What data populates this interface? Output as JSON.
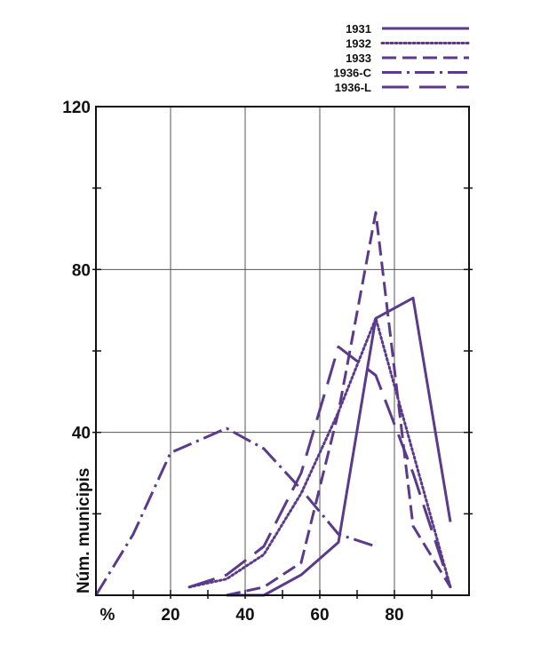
{
  "chart_data": {
    "type": "line",
    "title": "",
    "xlabel": "%",
    "ylabel": "Núm. municipis",
    "xlim": [
      0,
      100
    ],
    "ylim": [
      0,
      120
    ],
    "x_ticks": [
      20,
      40,
      60,
      80
    ],
    "y_ticks": [
      40,
      80,
      120
    ],
    "grid": true,
    "legend_position": "top-right",
    "series_color": "#5b3a8c",
    "series": [
      {
        "name": "1931",
        "style": "solid",
        "x": [
          35,
          45,
          55,
          65,
          75,
          85,
          95
        ],
        "y": [
          0,
          0,
          5,
          13,
          68,
          73,
          18
        ]
      },
      {
        "name": "1932",
        "style": "dotted",
        "x": [
          25,
          35,
          45,
          55,
          65,
          75,
          85,
          95
        ],
        "y": [
          2,
          4,
          10,
          25,
          45,
          68,
          35,
          2
        ]
      },
      {
        "name": "1933",
        "style": "dashed",
        "x": [
          35,
          45,
          55,
          65,
          75,
          85,
          95
        ],
        "y": [
          0,
          2,
          8,
          45,
          94,
          17,
          2
        ]
      },
      {
        "name": "1936-C",
        "style": "dashdot",
        "x": [
          0,
          10,
          20,
          35,
          45,
          55,
          65,
          75
        ],
        "y": [
          0,
          15,
          35,
          41,
          36,
          26,
          15,
          12
        ]
      },
      {
        "name": "1936-L",
        "style": "longdash",
        "x": [
          25,
          35,
          45,
          55,
          65,
          75,
          85,
          95
        ],
        "y": [
          2,
          5,
          12,
          30,
          61,
          54,
          30,
          2
        ]
      }
    ]
  }
}
